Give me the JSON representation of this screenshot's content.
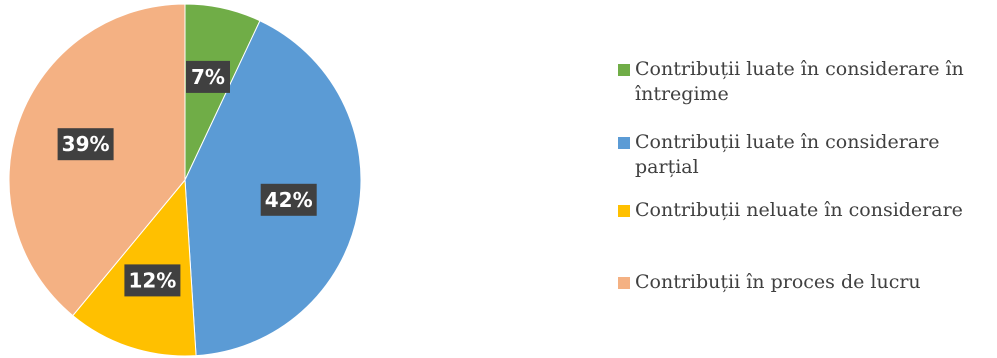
{
  "chart_data": {
    "type": "pie",
    "title": "",
    "start_angle_deg": 0,
    "direction": "clockwise",
    "legend_position": "right",
    "slices": [
      {
        "label": "Contribuții luate în considerare în întregime",
        "value": 7,
        "value_label": "7%",
        "color": "#70AD47"
      },
      {
        "label": "Contribuții luate în considerare parțial",
        "value": 42,
        "value_label": "42%",
        "color": "#5B9BD5"
      },
      {
        "label": "Contribuții neluate în considerare",
        "value": 12,
        "value_label": "12%",
        "color": "#FFC000"
      },
      {
        "label": "Contribuții în proces de lucru",
        "value": 39,
        "value_label": "39%",
        "color": "#F4B183"
      }
    ]
  }
}
